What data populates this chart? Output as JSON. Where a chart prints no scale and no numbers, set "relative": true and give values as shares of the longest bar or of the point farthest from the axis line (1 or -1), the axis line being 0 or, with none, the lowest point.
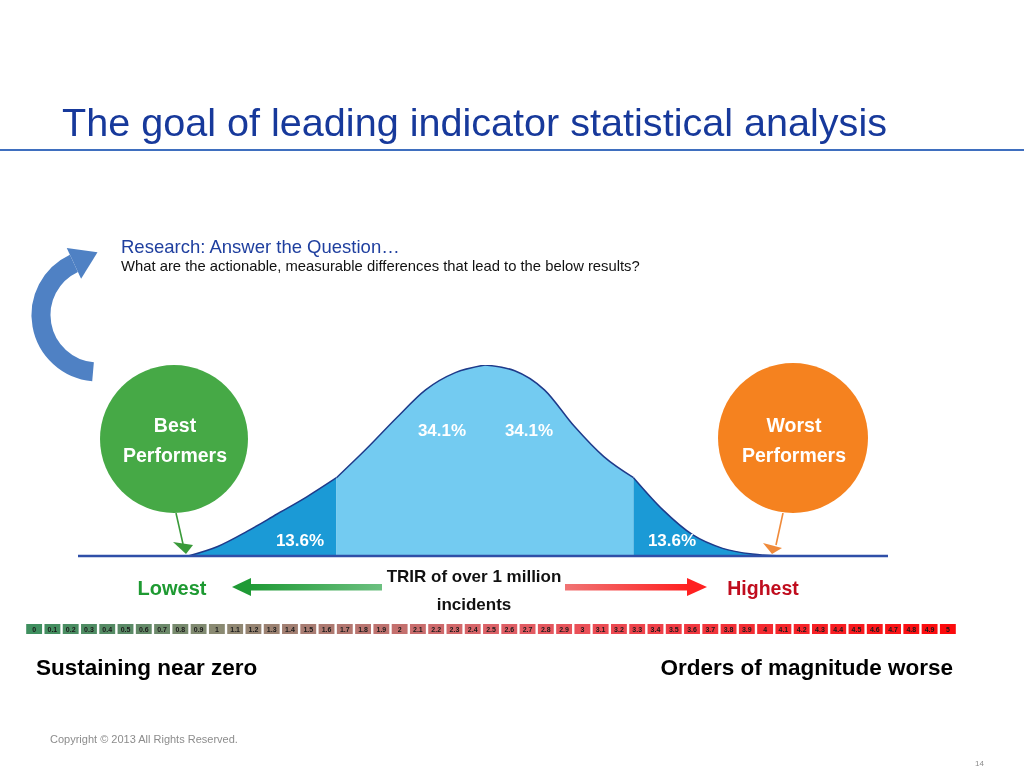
{
  "chart_data": [
    {
      "type": "area",
      "title": "The goal of leading indicator statistical analysis",
      "subtitle": "Research: Answer the Question…",
      "categories": [
        null,
        null,
        null,
        null,
        null,
        null,
        null,
        null,
        null,
        null,
        null,
        null,
        null,
        null,
        null,
        null,
        null,
        null,
        null,
        null,
        null
      ],
      "relative": true,
      "series": [
        {
          "color": "#1b9ad6",
          "values": [
            0,
            0.05,
            0.13,
            0.22,
            0.31,
            0.41,
            null,
            null,
            null,
            null,
            null,
            null,
            null,
            null,
            null,
            null,
            null,
            null,
            null,
            null,
            null
          ]
        },
        {
          "color": "#73cbf1",
          "values": [
            null,
            null,
            null,
            null,
            null,
            0.41,
            0.56,
            0.72,
            0.87,
            0.96,
            1,
            null,
            null,
            null,
            null,
            null,
            null,
            null,
            null,
            null,
            null
          ]
        },
        {
          "color": "#73cbf1",
          "values": [
            null,
            null,
            null,
            null,
            null,
            null,
            null,
            null,
            null,
            null,
            1,
            0.97,
            0.87,
            0.68,
            0.52,
            0.41,
            null,
            null,
            null,
            null,
            null
          ]
        },
        {
          "color": "#1b9ad6",
          "values": [
            null,
            null,
            null,
            null,
            null,
            null,
            null,
            null,
            null,
            null,
            null,
            null,
            null,
            null,
            null,
            0.41,
            0.24,
            0.11,
            0.04,
            0.01,
            0
          ]
        }
      ],
      "annotations": [
        "What are the actionable, measurable differences that lead to the below results?",
        "34.1%",
        "34.1%",
        "13.6%",
        "13.6%",
        "Best Performers",
        "Worst Performers"
      ]
    },
    {
      "type": "heatmap",
      "title": "TRIR of over 1 million incidents",
      "categories": [
        null,
        null,
        null,
        null,
        null,
        null,
        null,
        null,
        null,
        null,
        null,
        null,
        null,
        null,
        null,
        null,
        null,
        null,
        null,
        null,
        null,
        null,
        null,
        null,
        null,
        null,
        null,
        null,
        null,
        null,
        null,
        null,
        null,
        null,
        null,
        null,
        null,
        null,
        null,
        null,
        null,
        null,
        null,
        null,
        null,
        null,
        null,
        null,
        null,
        null,
        null
      ],
      "y_categories": [
        null
      ],
      "cells": [
        [
          0,
          0.1,
          0.2,
          0.3,
          0.4,
          0.5,
          0.6,
          0.7,
          0.8,
          0.9,
          1,
          1.1,
          1.2,
          1.3,
          1.4,
          1.5,
          1.6,
          1.7,
          1.8,
          1.9,
          2,
          2.1,
          2.2,
          2.3,
          2.4,
          2.5,
          2.6,
          2.7,
          2.8,
          2.9,
          3,
          3.1,
          3.2,
          3.3,
          3.4,
          3.5,
          3.6,
          3.7,
          3.8,
          3.9,
          4,
          4.1,
          4.2,
          4.3,
          4.4,
          4.5,
          4.6,
          4.7,
          4.8,
          4.9,
          5
        ]
      ],
      "colors": [
        "#3f8f5f",
        "#448e60",
        "#4a8d62",
        "#4f8c63",
        "#558b64",
        "#5a8a66",
        "#648a68",
        "#6d8a6b",
        "#778a6d",
        "#808a70",
        "#8a8a72",
        "#908772",
        "#968472",
        "#9c8272",
        "#a27f72",
        "#a87c72",
        "#ae7a71",
        "#b37770",
        "#b97570",
        "#be726f",
        "#c4706e",
        "#c96d6d",
        "#ce6a6c",
        "#d2686a",
        "#d76569",
        "#dc6268",
        "#df5e65",
        "#e25b62",
        "#e4575e",
        "#e7545b",
        "#ea5058",
        "#eb4c54",
        "#ec4850",
        "#ee444c",
        "#ef4048",
        "#f03c44",
        "#f13840",
        "#f2353c",
        "#f23138",
        "#f32e34",
        "#f42a30",
        "#f5272c",
        "#f62429",
        "#f62025",
        "#f71d22",
        "#f81a1e",
        "#f9171a",
        "#f91417",
        "#fa1013",
        "#fb0d10",
        "#fc0a0c"
      ],
      "data_labels": true,
      "annotations": [
        "Lowest",
        "Highest",
        "Sustaining near zero",
        "Orders of magnitude worse",
        "Copyright © 2013 All Rights Reserved.",
        "14"
      ]
    }
  ]
}
